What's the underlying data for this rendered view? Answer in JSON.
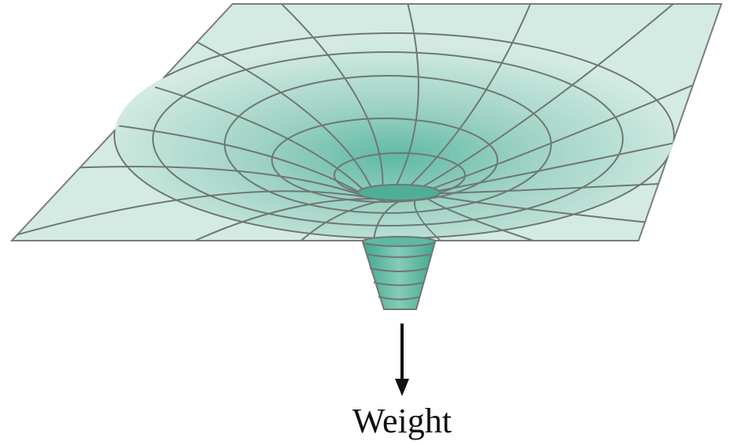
{
  "label": "Weight"
}
